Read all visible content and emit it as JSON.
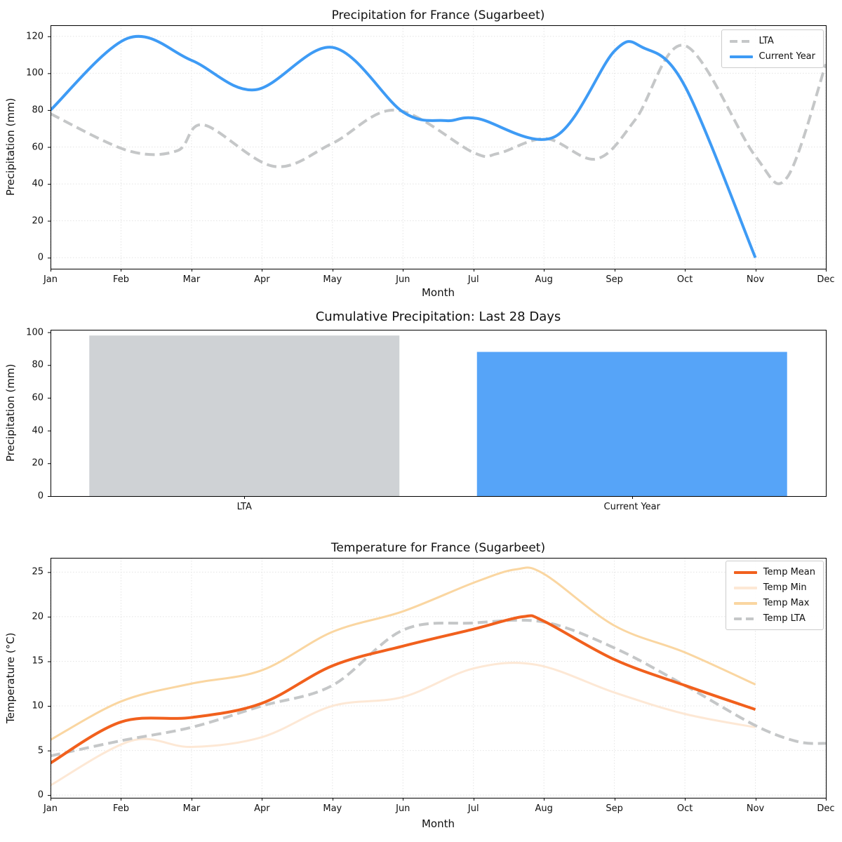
{
  "page": {
    "background": "#ffffff"
  },
  "chart_data": [
    {
      "id": "precipitation-line-chart",
      "type": "line",
      "title": "Precipitation for France (Sugarbeet)",
      "xlabel": "Month",
      "ylabel": "Precipitation (mm)",
      "categories": [
        "Jan",
        "Feb",
        "Mar",
        "Apr",
        "May",
        "Jun",
        "Jul",
        "Aug",
        "Sep",
        "Oct",
        "Nov",
        "Dec"
      ],
      "yticks": [
        0,
        20,
        40,
        60,
        80,
        100,
        120
      ],
      "ylim": [
        -6,
        126
      ],
      "grid": true,
      "legend_position": "upper right",
      "series": [
        {
          "name": "LTA",
          "color": "#C5C7C8",
          "style": "dashed",
          "width": 4,
          "x": [
            0,
            1.1,
            1.8,
            2.17,
            3.17,
            4,
            4.9,
            6,
            6.35,
            7.03,
            7.74,
            8.3,
            9,
            10,
            10.45,
            11
          ],
          "values": [
            78,
            58,
            58,
            72,
            49.5,
            62,
            80,
            57,
            56.5,
            64.5,
            53.5,
            75,
            115,
            55,
            43.5,
            105
          ]
        },
        {
          "name": "Current Year",
          "color": "#3E9BF5",
          "style": "solid",
          "width": 4,
          "x": [
            0,
            1.1,
            2,
            2.9,
            4,
            5,
            5.6,
            6.05,
            7.15,
            8,
            8.4,
            9,
            10
          ],
          "values": [
            80,
            119,
            107,
            91,
            114,
            79,
            74.3,
            75.5,
            65.5,
            112,
            114,
            93,
            0
          ]
        }
      ]
    },
    {
      "id": "cumulative-precipitation-bar-chart",
      "type": "bar",
      "title": "Cumulative Precipitation: Last 28 Days",
      "xlabel": "",
      "ylabel": "Precipitation (mm)",
      "categories": [
        "LTA",
        "Current Year"
      ],
      "values": [
        98,
        88
      ],
      "bar_colors": [
        "#CFD2D5",
        "#56A4F8"
      ],
      "yticks": [
        0,
        20,
        40,
        60,
        80,
        100
      ],
      "ylim": [
        0,
        101.5
      ],
      "grid": false
    },
    {
      "id": "temperature-line-chart",
      "type": "line",
      "title": "Temperature for France (Sugarbeet)",
      "xlabel": "Month",
      "ylabel": "Temperature (°C)",
      "categories": [
        "Jan",
        "Feb",
        "Mar",
        "Apr",
        "May",
        "Jun",
        "Jul",
        "Aug",
        "Sep",
        "Oct",
        "Nov",
        "Dec"
      ],
      "yticks": [
        0,
        5,
        10,
        15,
        20,
        25
      ],
      "ylim": [
        -0.3,
        26.6
      ],
      "grid": true,
      "legend_position": "upper right",
      "series": [
        {
          "name": "Temp Min",
          "color": "#FDE8D5",
          "style": "solid",
          "width": 3,
          "x": [
            0,
            1.15,
            2,
            3,
            4,
            5,
            6,
            6.9,
            8,
            9,
            10
          ],
          "values": [
            1.1,
            6.1,
            5.4,
            6.5,
            10,
            11,
            14.2,
            14.6,
            11.5,
            9.1,
            7.6
          ]
        },
        {
          "name": "Temp Max",
          "color": "#FAD6A1",
          "style": "solid",
          "width": 3,
          "x": [
            0,
            1,
            2,
            3,
            4,
            5,
            6,
            6.6,
            7,
            8,
            9,
            10
          ],
          "values": [
            6.2,
            10.5,
            12.5,
            14,
            18.3,
            20.6,
            23.8,
            25.3,
            24.8,
            19,
            16,
            12.4
          ]
        },
        {
          "name": "Temp LTA",
          "color": "#C5C7C8",
          "style": "dashed",
          "width": 4,
          "x": [
            0,
            1,
            2,
            3,
            4,
            5,
            6,
            7,
            8,
            9,
            10,
            10.6,
            11
          ],
          "values": [
            4.4,
            6.1,
            7.6,
            10,
            12.3,
            18.5,
            19.3,
            19.4,
            16.5,
            12.3,
            7.8,
            6.0,
            5.8
          ]
        },
        {
          "name": "Temp Mean",
          "color": "#F1601D",
          "style": "solid",
          "width": 4,
          "x": [
            0,
            1,
            2,
            3,
            4,
            5,
            6,
            6.7,
            7,
            8,
            9,
            10
          ],
          "values": [
            3.6,
            8.2,
            8.7,
            10.3,
            14.5,
            16.7,
            18.6,
            20,
            19.5,
            15.2,
            12.3,
            9.6
          ]
        }
      ],
      "legend_order": [
        "Temp Mean",
        "Temp Min",
        "Temp Max",
        "Temp LTA"
      ]
    }
  ]
}
